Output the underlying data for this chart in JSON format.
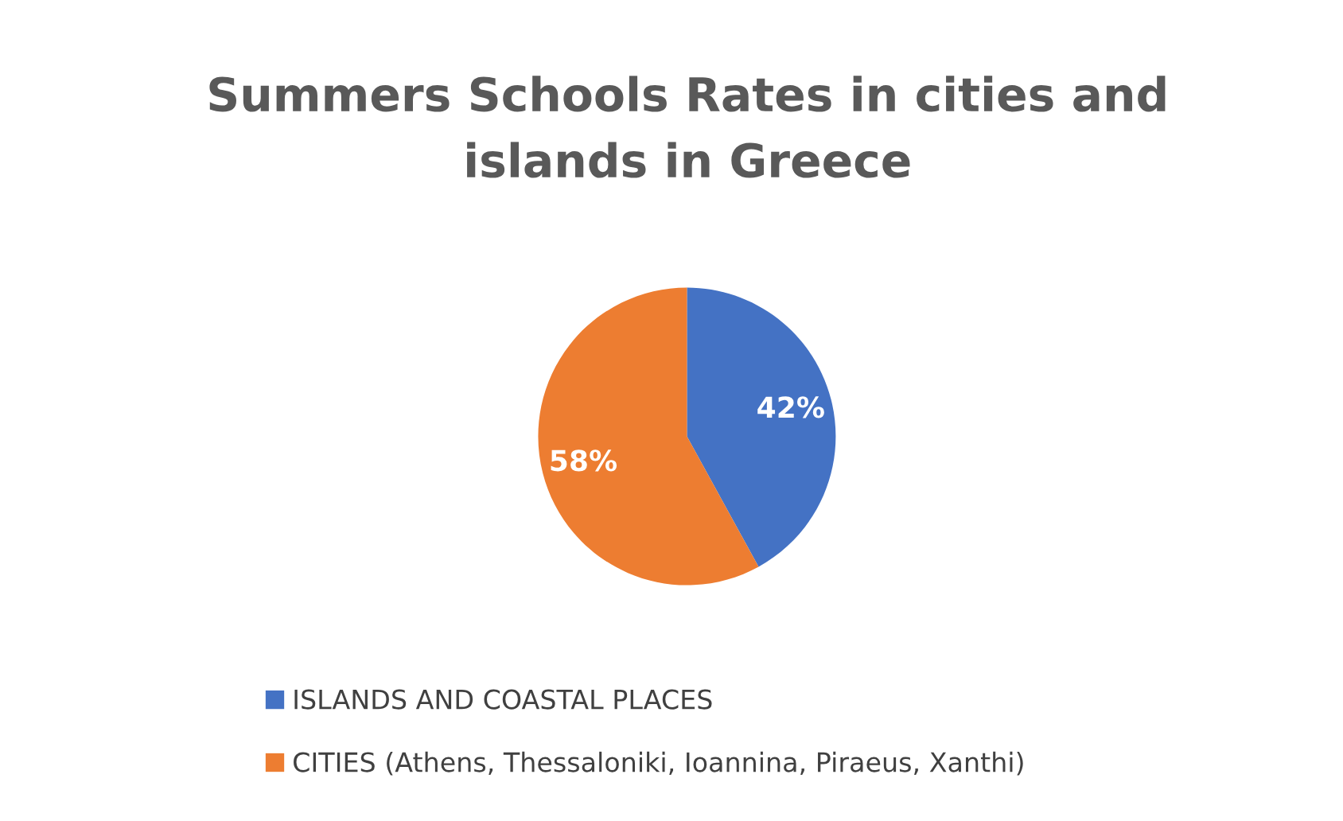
{
  "chart_data": {
    "type": "pie",
    "title": "Summers Schools Rates in cities and\nislands in Greece",
    "categories": [
      "ISLANDS AND COASTAL PLACES",
      "CITIES (Athens, Thessaloniki, Ioannina, Piraeus, Xanthi)"
    ],
    "values": [
      42,
      58
    ],
    "colors": [
      "#4472c4",
      "#ed7d31"
    ],
    "value_labels": [
      "42%",
      "58%"
    ],
    "legend": "bottom left"
  }
}
